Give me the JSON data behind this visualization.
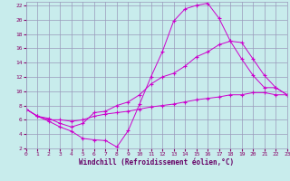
{
  "xlabel": "Windchill (Refroidissement éolien,°C)",
  "bg_color": "#c8ecec",
  "grid_color": "#9999bb",
  "line_color": "#cc00cc",
  "xlim": [
    0,
    23
  ],
  "ylim": [
    2,
    22.5
  ],
  "x_ticks": [
    0,
    1,
    2,
    3,
    4,
    5,
    6,
    7,
    8,
    9,
    10,
    11,
    12,
    13,
    14,
    15,
    16,
    17,
    18,
    19,
    20,
    21,
    22,
    23
  ],
  "y_ticks": [
    2,
    4,
    6,
    8,
    10,
    12,
    14,
    16,
    18,
    20,
    22
  ],
  "line1_x": [
    0,
    1,
    2,
    3,
    4,
    5,
    6,
    7,
    8,
    9,
    10,
    11,
    12,
    13,
    14,
    15,
    16,
    17,
    18,
    19,
    20,
    21,
    22,
    23
  ],
  "line1_y": [
    7.5,
    6.5,
    5.8,
    5.0,
    4.4,
    3.4,
    3.2,
    3.1,
    2.2,
    4.5,
    8.2,
    12.0,
    15.5,
    19.8,
    21.5,
    22.0,
    22.3,
    20.2,
    17.0,
    14.5,
    12.2,
    10.5,
    10.5,
    9.5
  ],
  "line2_x": [
    0,
    1,
    2,
    3,
    4,
    5,
    6,
    7,
    8,
    9,
    10,
    11,
    12,
    13,
    14,
    15,
    16,
    17,
    18,
    19,
    20,
    21,
    22,
    23
  ],
  "line2_y": [
    7.5,
    6.5,
    6.2,
    5.5,
    5.0,
    5.5,
    7.0,
    7.2,
    8.0,
    8.5,
    9.5,
    11.0,
    12.0,
    12.5,
    13.5,
    14.8,
    15.5,
    16.5,
    17.0,
    16.8,
    14.5,
    12.2,
    10.5,
    9.5
  ],
  "line3_x": [
    0,
    1,
    2,
    3,
    4,
    5,
    6,
    7,
    8,
    9,
    10,
    11,
    12,
    13,
    14,
    15,
    16,
    17,
    18,
    19,
    20,
    21,
    22,
    23
  ],
  "line3_y": [
    7.5,
    6.5,
    6.0,
    6.0,
    5.8,
    6.0,
    6.5,
    6.8,
    7.0,
    7.2,
    7.5,
    7.8,
    8.0,
    8.2,
    8.5,
    8.8,
    9.0,
    9.2,
    9.5,
    9.5,
    9.8,
    9.8,
    9.5,
    9.5
  ]
}
